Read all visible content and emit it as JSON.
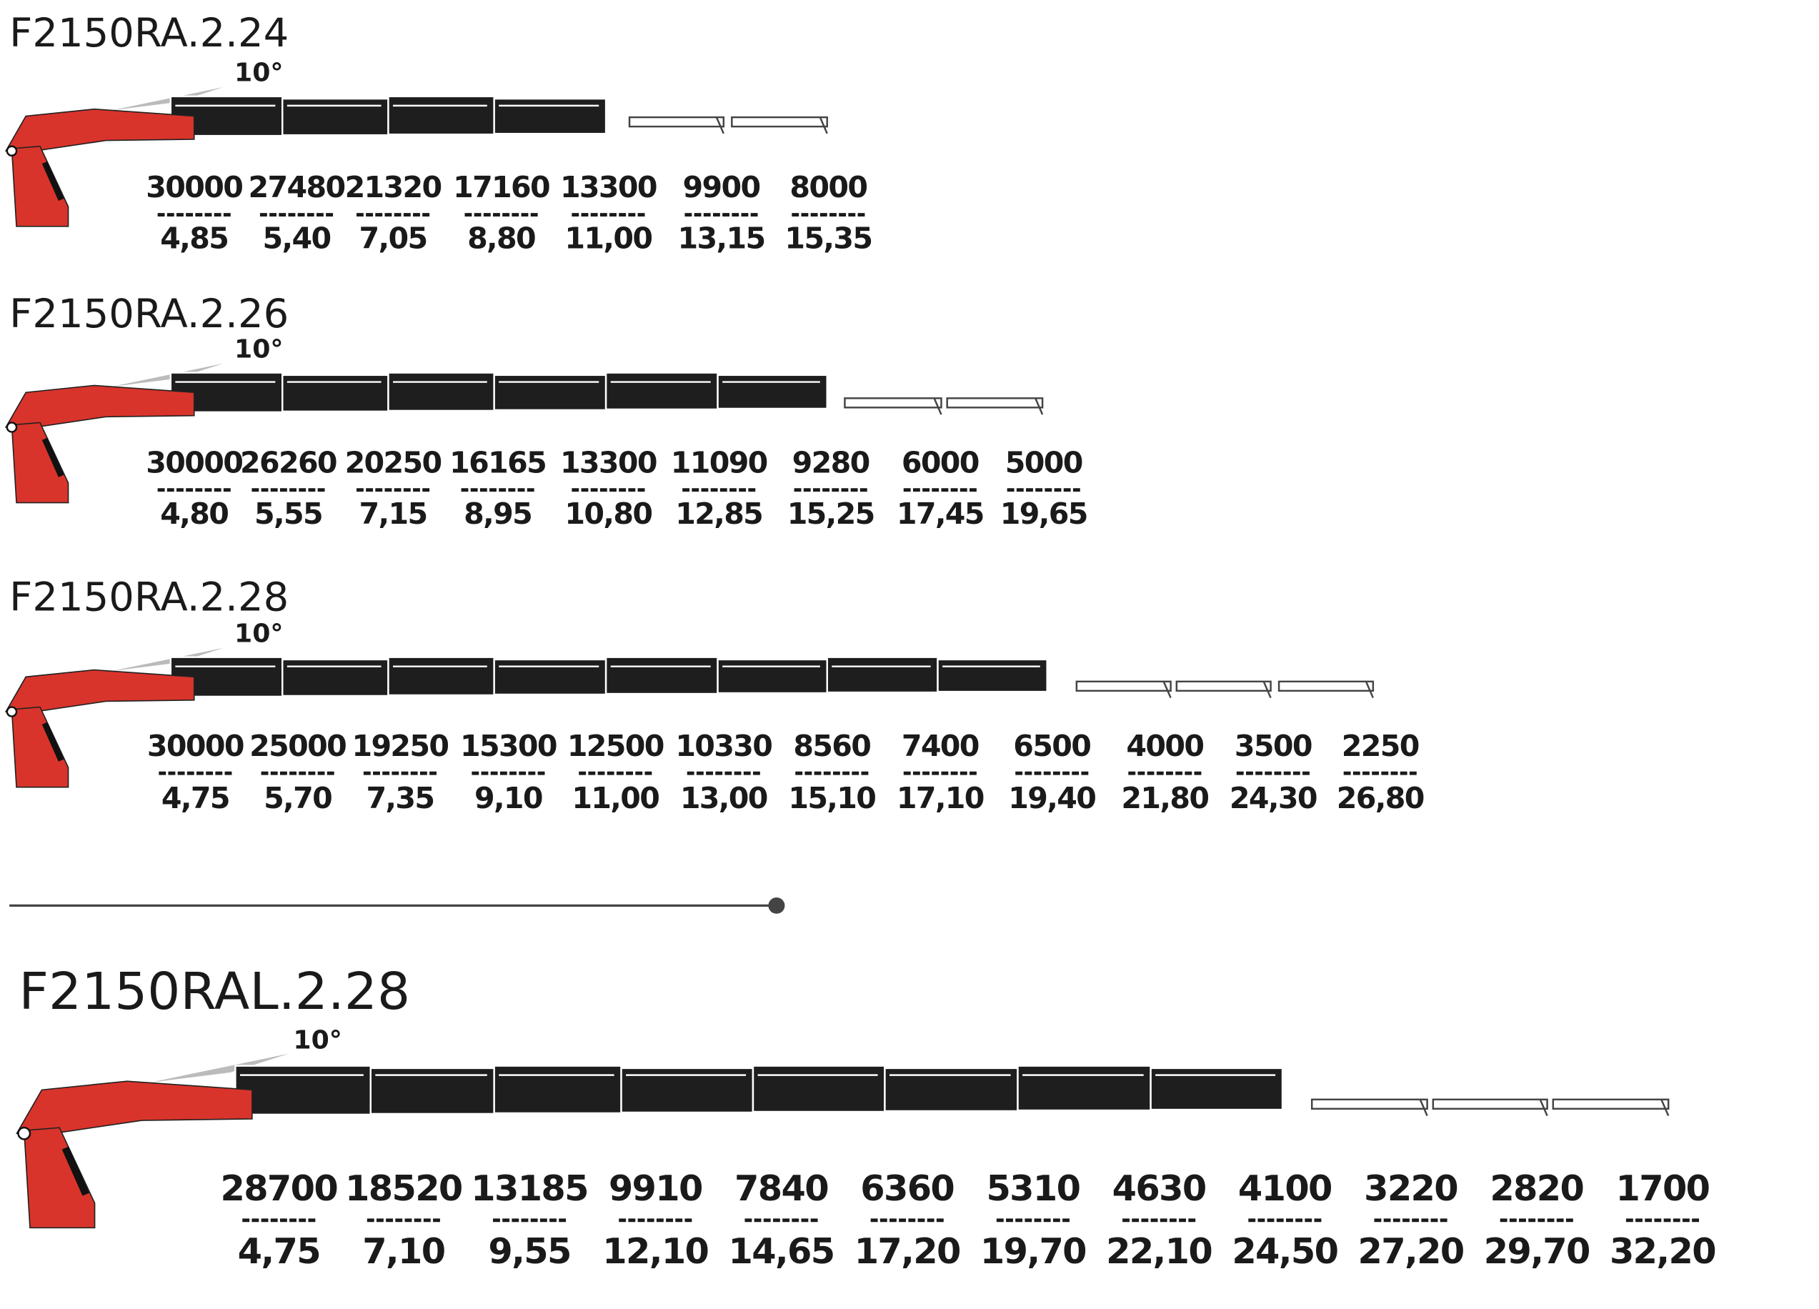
{
  "sections": [
    {
      "title": "F2150RA.2.24",
      "angle": "10°",
      "loads": [
        30000,
        27480,
        21320,
        17160,
        13300,
        9900,
        8000
      ],
      "reaches": [
        "4,85",
        "5,40",
        "7,05",
        "8,80",
        "11,00",
        "13,15",
        "15,35"
      ]
    },
    {
      "title": "F2150RA.2.26",
      "angle": "10°",
      "loads": [
        30000,
        26260,
        20250,
        16165,
        13300,
        11090,
        9280,
        6000,
        5000
      ],
      "reaches": [
        "4,80",
        "5,55",
        "7,15",
        "8,95",
        "10,80",
        "12,85",
        "15,25",
        "17,45",
        "19,65"
      ]
    },
    {
      "title": "F2150RA.2.28",
      "angle": "10°",
      "loads": [
        30000,
        25000,
        19250,
        15300,
        12500,
        10330,
        8560,
        7400,
        6500,
        4000,
        3500,
        2250
      ],
      "reaches": [
        "4,75",
        "5,70",
        "7,35",
        "9,10",
        "11,00",
        "13,00",
        "15,10",
        "17,10",
        "19,40",
        "21,80",
        "24,30",
        "26,80"
      ]
    },
    {
      "title": "F2150RAL.2.28",
      "angle": "10°",
      "loads": [
        28700,
        18520,
        13185,
        9910,
        7840,
        6360,
        5310,
        4630,
        4100,
        3220,
        2820,
        1700
      ],
      "reaches": [
        "4,75",
        "7,10",
        "9,55",
        "12,10",
        "14,65",
        "17,20",
        "19,70",
        "22,10",
        "24,50",
        "27,20",
        "29,70",
        "32,20"
      ]
    }
  ]
}
